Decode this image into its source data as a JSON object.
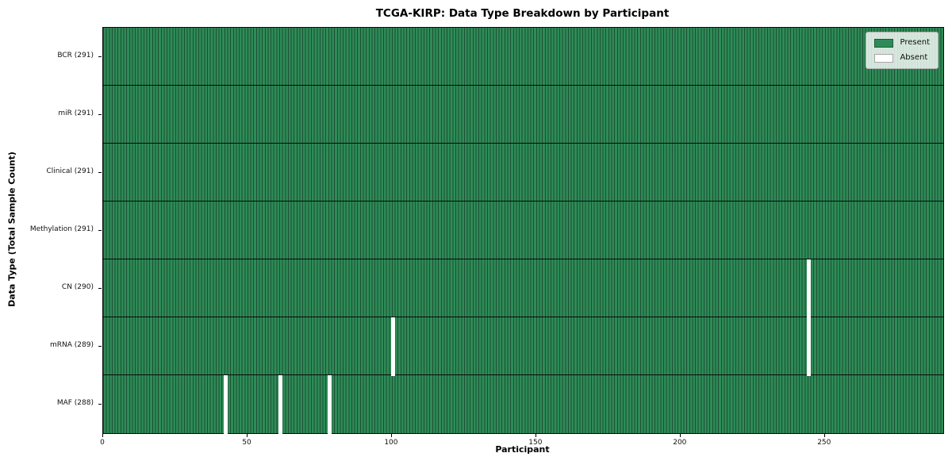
{
  "chart_data": {
    "type": "heatmap",
    "title": "TCGA-KIRP: Data Type Breakdown by Participant",
    "xlabel": "Participant",
    "ylabel": "Data Type (Total Sample Count)",
    "n_participants": 291,
    "x_ticks": [
      0,
      50,
      100,
      150,
      200,
      250
    ],
    "xlim": [
      0,
      291
    ],
    "grid": false,
    "legend_position": "upper right",
    "rows": [
      {
        "name": "BCR",
        "label": "BCR (291)",
        "present_count": 291,
        "absent_participants": []
      },
      {
        "name": "miR",
        "label": "miR (291)",
        "present_count": 291,
        "absent_participants": []
      },
      {
        "name": "Clinical",
        "label": "Clinical (291)",
        "present_count": 291,
        "absent_participants": []
      },
      {
        "name": "Methylation",
        "label": "Methylation (291)",
        "present_count": 291,
        "absent_participants": []
      },
      {
        "name": "CN",
        "label": "CN (290)",
        "present_count": 290,
        "absent_participants": [
          244
        ]
      },
      {
        "name": "mRNA",
        "label": "mRNA (289)",
        "present_count": 289,
        "absent_participants": [
          100,
          244
        ]
      },
      {
        "name": "MAF",
        "label": "MAF (288)",
        "present_count": 288,
        "absent_participants": [
          42,
          61,
          78
        ]
      }
    ],
    "legend": [
      {
        "label": "Present",
        "color": "#2e8b57"
      },
      {
        "label": "Absent",
        "color": "#ffffff"
      }
    ],
    "colors": {
      "present": "#2e8b57",
      "absent": "#ffffff",
      "bar_edge": "#1c4f33",
      "row_divider": "#0a0a0a",
      "axis": "#000000",
      "legend_border": "#b3b3b3",
      "legend_bg": "rgba(255,255,255,0.8)"
    }
  }
}
